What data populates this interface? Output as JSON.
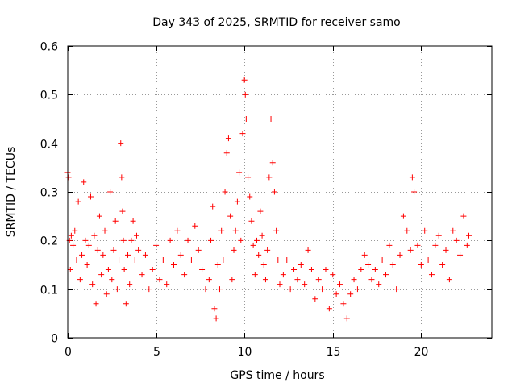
{
  "chart_data": {
    "type": "scatter",
    "title": "Day 343 of 2025, SRMTID for receiver samo",
    "xlabel": "GPS time / hours",
    "ylabel": "SRMTID / TECUs",
    "xlim": [
      0,
      24
    ],
    "ylim": [
      0,
      0.6
    ],
    "xticks": [
      0,
      5,
      10,
      15,
      20
    ],
    "xtick_labels": [
      "0",
      "5",
      "10",
      "15",
      "20"
    ],
    "yticks": [
      0,
      0.1,
      0.2,
      0.3,
      0.4,
      0.5,
      0.6
    ],
    "ytick_labels": [
      "0",
      "0.1",
      "0.2",
      "0.3",
      "0.4",
      "0.5",
      "0.6"
    ],
    "grid": true,
    "marker": "+",
    "marker_color": "#ff0000",
    "series": [
      {
        "name": "SRMTID",
        "x": [
          0.0,
          0.05,
          0.1,
          0.15,
          0.2,
          0.3,
          0.4,
          0.5,
          0.6,
          0.7,
          0.8,
          0.9,
          1.0,
          1.1,
          1.2,
          1.3,
          1.4,
          1.5,
          1.6,
          1.7,
          1.8,
          1.9,
          2.0,
          2.1,
          2.2,
          2.3,
          2.4,
          2.5,
          2.6,
          2.7,
          2.8,
          2.9,
          3.0,
          3.05,
          3.1,
          3.15,
          3.2,
          3.3,
          3.4,
          3.5,
          3.6,
          3.7,
          3.8,
          3.9,
          4.0,
          4.2,
          4.4,
          4.6,
          4.8,
          5.0,
          5.2,
          5.4,
          5.6,
          5.8,
          6.0,
          6.2,
          6.4,
          6.6,
          6.8,
          7.0,
          7.2,
          7.4,
          7.6,
          7.8,
          8.0,
          8.1,
          8.2,
          8.3,
          8.4,
          8.5,
          8.6,
          8.7,
          8.8,
          8.9,
          9.0,
          9.1,
          9.2,
          9.3,
          9.4,
          9.5,
          9.6,
          9.7,
          9.8,
          9.9,
          10.0,
          10.05,
          10.1,
          10.2,
          10.3,
          10.4,
          10.5,
          10.6,
          10.7,
          10.8,
          10.9,
          11.0,
          11.1,
          11.2,
          11.3,
          11.4,
          11.5,
          11.6,
          11.7,
          11.8,
          11.9,
          12.0,
          12.2,
          12.4,
          12.6,
          12.8,
          13.0,
          13.2,
          13.4,
          13.6,
          13.8,
          14.0,
          14.2,
          14.4,
          14.6,
          14.8,
          15.0,
          15.2,
          15.4,
          15.6,
          15.8,
          16.0,
          16.2,
          16.4,
          16.6,
          16.8,
          17.0,
          17.2,
          17.4,
          17.6,
          17.8,
          18.0,
          18.2,
          18.4,
          18.6,
          18.8,
          19.0,
          19.2,
          19.4,
          19.5,
          19.6,
          19.8,
          20.0,
          20.2,
          20.4,
          20.6,
          20.8,
          21.0,
          21.2,
          21.4,
          21.6,
          21.8,
          22.0,
          22.2,
          22.4,
          22.6,
          22.7
        ],
        "y": [
          0.34,
          0.33,
          0.2,
          0.14,
          0.21,
          0.19,
          0.22,
          0.16,
          0.28,
          0.12,
          0.17,
          0.32,
          0.2,
          0.15,
          0.19,
          0.29,
          0.11,
          0.21,
          0.07,
          0.18,
          0.25,
          0.13,
          0.17,
          0.22,
          0.09,
          0.14,
          0.3,
          0.12,
          0.18,
          0.24,
          0.1,
          0.16,
          0.4,
          0.33,
          0.26,
          0.2,
          0.14,
          0.07,
          0.17,
          0.11,
          0.2,
          0.24,
          0.16,
          0.21,
          0.18,
          0.13,
          0.17,
          0.1,
          0.14,
          0.19,
          0.12,
          0.16,
          0.11,
          0.2,
          0.15,
          0.22,
          0.17,
          0.13,
          0.2,
          0.16,
          0.23,
          0.18,
          0.14,
          0.1,
          0.12,
          0.2,
          0.27,
          0.06,
          0.04,
          0.15,
          0.1,
          0.22,
          0.16,
          0.3,
          0.38,
          0.41,
          0.25,
          0.12,
          0.18,
          0.22,
          0.28,
          0.34,
          0.2,
          0.42,
          0.53,
          0.5,
          0.45,
          0.33,
          0.29,
          0.24,
          0.19,
          0.13,
          0.2,
          0.17,
          0.26,
          0.21,
          0.15,
          0.12,
          0.18,
          0.33,
          0.45,
          0.36,
          0.3,
          0.22,
          0.16,
          0.11,
          0.13,
          0.16,
          0.1,
          0.14,
          0.12,
          0.15,
          0.11,
          0.18,
          0.14,
          0.08,
          0.12,
          0.1,
          0.14,
          0.06,
          0.13,
          0.09,
          0.11,
          0.07,
          0.04,
          0.09,
          0.12,
          0.1,
          0.14,
          0.17,
          0.15,
          0.12,
          0.14,
          0.11,
          0.16,
          0.13,
          0.19,
          0.15,
          0.1,
          0.17,
          0.25,
          0.22,
          0.18,
          0.33,
          0.3,
          0.19,
          0.15,
          0.22,
          0.16,
          0.13,
          0.19,
          0.21,
          0.15,
          0.18,
          0.12,
          0.22,
          0.2,
          0.17,
          0.25,
          0.19,
          0.21
        ]
      }
    ]
  }
}
